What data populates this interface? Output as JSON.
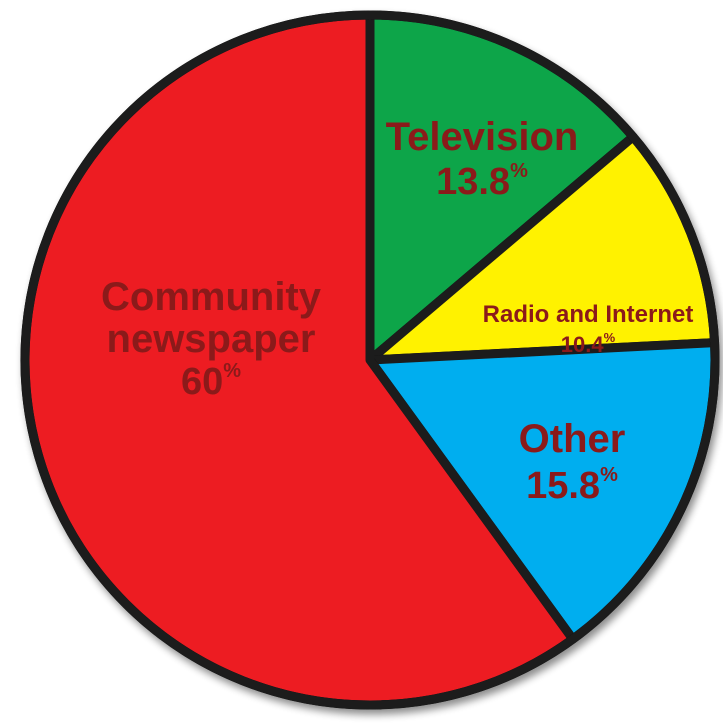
{
  "chart_data": {
    "type": "pie",
    "slices": [
      {
        "name_lines": [
          "Television"
        ],
        "value": 13.8,
        "value_text": "13.8",
        "unit": "%",
        "color": "#0ca54a"
      },
      {
        "name_lines": [
          "Radio and Internet"
        ],
        "value": 10.4,
        "value_text": "10.4",
        "unit": "%",
        "color": "#fff200"
      },
      {
        "name_lines": [
          "Other"
        ],
        "value": 15.8,
        "value_text": "15.8",
        "unit": "%",
        "color": "#00aeef"
      },
      {
        "name_lines": [
          "Community",
          "newspaper"
        ],
        "value": 60,
        "value_text": "60",
        "unit": "%",
        "color": "#ed1c24"
      }
    ],
    "start_angle_deg": 0,
    "direction": "clockwise",
    "label_color": "#8b1a1a",
    "outline_color": "#1a1a1a"
  }
}
